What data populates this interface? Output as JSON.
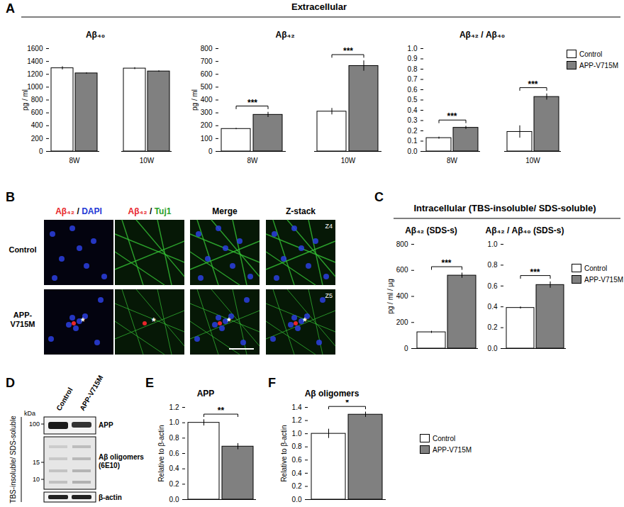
{
  "figure": {
    "panel_letters": [
      "A",
      "B",
      "C",
      "D",
      "E",
      "F"
    ],
    "sections": [
      {
        "panel": "A",
        "title": "Extracellular"
      },
      {
        "panel": "C",
        "title": "Intracellular (TBS-insoluble/ SDS-soluble)"
      }
    ],
    "micrographs": {
      "columns": [
        [
          {
            "text": "Aβ₄₂",
            "color": "#e8262b"
          },
          {
            "text": " / ",
            "color": "#000000"
          },
          {
            "text": "DAPI",
            "color": "#1f3bd6"
          }
        ],
        [
          {
            "text": "Aβ₄₂",
            "color": "#e8262b"
          },
          {
            "text": " / ",
            "color": "#000000"
          },
          {
            "text": "Tuj1",
            "color": "#2aa02a"
          }
        ],
        [
          {
            "text": "Merge",
            "color": "#000000"
          }
        ],
        [
          {
            "text": "Z-stack",
            "color": "#000000"
          }
        ]
      ],
      "rows": [
        "Control",
        "APP-V715M"
      ],
      "z_labels": [
        "Z4",
        "Z5"
      ],
      "highlight": "*"
    },
    "blot": {
      "side_label": "TBS-insoluble/ SDS-soluble",
      "lanes": [
        "Control",
        "APP-V715M"
      ],
      "unit": "kDa",
      "markers": [
        100,
        15,
        10
      ],
      "rows": [
        [
          "APP"
        ],
        [
          "Aβ oligomers",
          "(6E10)"
        ],
        [
          "β-actin"
        ]
      ]
    }
  },
  "chart_data": [
    {
      "type": "bar",
      "title": "Aβ₄₀",
      "ylabel": "pg / ml",
      "categories": [
        "8W",
        "10W"
      ],
      "series": [
        {
          "name": "Control",
          "color": "#ffffff",
          "values": [
            1295,
            1290
          ],
          "errors": [
            25,
            15
          ]
        },
        {
          "name": "APP-V715M",
          "color": "#808080",
          "values": [
            1215,
            1245
          ],
          "errors": [
            10,
            10
          ]
        }
      ],
      "ylim": [
        0,
        1600
      ],
      "yticks": [
        0,
        200,
        400,
        600,
        800,
        1000,
        1200,
        1400,
        1600
      ]
    },
    {
      "type": "bar",
      "title": "Aβ₄₂",
      "ylabel": "pg / ml",
      "categories": [
        "8W",
        "10W"
      ],
      "series": [
        {
          "name": "Control",
          "color": "#ffffff",
          "values": [
            175,
            310
          ],
          "errors": [
            5,
            25
          ]
        },
        {
          "name": "APP-V715M",
          "color": "#808080",
          "values": [
            285,
            665
          ],
          "errors": [
            20,
            40
          ]
        }
      ],
      "ylim": [
        0,
        800
      ],
      "yticks": [
        0,
        100,
        200,
        300,
        400,
        500,
        600,
        700,
        800
      ],
      "annotations": [
        {
          "category": "8W",
          "text": "***"
        },
        {
          "category": "10W",
          "text": "***"
        }
      ]
    },
    {
      "type": "bar",
      "title": "Aβ₄₂ / Aβ₄₀",
      "categories": [
        "8W",
        "10W"
      ],
      "series": [
        {
          "name": "Control",
          "color": "#ffffff",
          "values": [
            0.13,
            0.19
          ],
          "errors": [
            0.01,
            0.06
          ]
        },
        {
          "name": "APP-V715M",
          "color": "#808080",
          "values": [
            0.23,
            0.53
          ],
          "errors": [
            0.015,
            0.03
          ]
        }
      ],
      "ylim": [
        0,
        1
      ],
      "yticks": [
        {
          "value": 0,
          "label": "0.0"
        },
        0.1,
        0.2,
        0.3,
        0.4,
        0.5,
        0.6,
        0.7,
        0.8,
        0.9,
        {
          "value": 1,
          "label": "1.0"
        }
      ],
      "annotations": [
        {
          "category": "8W",
          "text": "***"
        },
        {
          "category": "10W",
          "text": "***"
        }
      ],
      "legend": "right"
    },
    {
      "type": "bar",
      "title": "Aβ₄₂ (SDS-s)",
      "ylabel": "pg / ml / μg",
      "categories": [
        null
      ],
      "series": [
        {
          "name": "Control",
          "color": "#ffffff",
          "values": [
            125
          ],
          "errors": [
            8
          ]
        },
        {
          "name": "APP-V715M",
          "color": "#808080",
          "values": [
            560
          ],
          "errors": [
            20
          ]
        }
      ],
      "ylim": [
        0,
        800
      ],
      "yticks": [
        0,
        200,
        400,
        600,
        800
      ],
      "annotations": [
        {
          "category": null,
          "text": "***"
        }
      ]
    },
    {
      "type": "bar",
      "title": "Aβ₄₂ / Aβ₄₀ (SDS-s)",
      "categories": [
        null
      ],
      "series": [
        {
          "name": "Control",
          "color": "#ffffff",
          "values": [
            0.39
          ],
          "errors": [
            0.01
          ]
        },
        {
          "name": "APP-V715M",
          "color": "#808080",
          "values": [
            0.61
          ],
          "errors": [
            0.03
          ]
        }
      ],
      "ylim": [
        0,
        1
      ],
      "yticks": [
        {
          "value": 0,
          "label": "0.0"
        },
        0.2,
        0.4,
        0.6,
        0.8,
        {
          "value": 1,
          "label": "1.0"
        }
      ],
      "annotations": [
        {
          "category": null,
          "text": "***"
        }
      ],
      "legend": "right"
    },
    {
      "type": "bar",
      "title": "APP",
      "ylabel": "Relative to β-actin",
      "categories": [
        null
      ],
      "series": [
        {
          "name": "Control",
          "color": "#ffffff",
          "values": [
            1.0
          ],
          "errors": [
            0.04
          ]
        },
        {
          "name": "APP-V715M",
          "color": "#808080",
          "values": [
            0.69
          ],
          "errors": [
            0.04
          ]
        }
      ],
      "ylim": [
        0,
        1.2
      ],
      "yticks": [
        {
          "value": 0,
          "label": "0.0"
        },
        0.2,
        0.4,
        0.6,
        0.8,
        {
          "value": 1,
          "label": "1.0"
        },
        1.2
      ],
      "annotations": [
        {
          "category": null,
          "text": "**"
        }
      ]
    },
    {
      "type": "bar",
      "title": "Aβ oligomers",
      "ylabel": "Relative to β-actin",
      "categories": [
        null
      ],
      "series": [
        {
          "name": "Control",
          "color": "#ffffff",
          "values": [
            1.0
          ],
          "errors": [
            0.07
          ]
        },
        {
          "name": "APP-V715M",
          "color": "#808080",
          "values": [
            1.29
          ],
          "errors": [
            0.04
          ]
        }
      ],
      "ylim": [
        0,
        1.4
      ],
      "yticks": [
        {
          "value": 0,
          "label": "0.0"
        },
        0.2,
        0.4,
        0.6,
        0.8,
        {
          "value": 1,
          "label": "1.0"
        },
        1.2,
        1.4
      ],
      "annotations": [
        {
          "category": null,
          "text": "*"
        }
      ],
      "legend": "right"
    }
  ]
}
